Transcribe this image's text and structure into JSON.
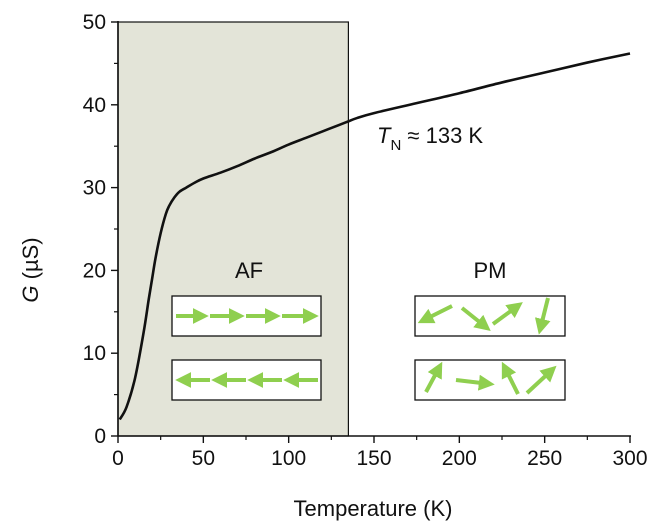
{
  "chart_data": {
    "type": "line",
    "xlabel": "Temperature (K)",
    "ylabel_var": "G",
    "ylabel_unit": " (µS)",
    "xlim": [
      0,
      300
    ],
    "ylim": [
      0,
      50
    ],
    "x_ticks": [
      0,
      50,
      100,
      150,
      200,
      250,
      300
    ],
    "y_ticks": [
      0,
      10,
      20,
      30,
      40,
      50
    ],
    "x_tick_labels": [
      "0",
      "50",
      "100",
      "150",
      "200",
      "250",
      "300"
    ],
    "y_tick_labels": [
      "0",
      "10",
      "20",
      "30",
      "40",
      "50"
    ],
    "grid": false,
    "shaded_region": {
      "x_range": [
        0,
        135
      ],
      "color": "#e3e4d8"
    },
    "series": [
      {
        "color": "#111111",
        "points": [
          [
            1,
            2.0
          ],
          [
            5,
            3.5
          ],
          [
            10,
            7.0
          ],
          [
            15,
            12.5
          ],
          [
            18,
            16.5
          ],
          [
            20,
            19.0
          ],
          [
            22,
            21.5
          ],
          [
            25,
            24.5
          ],
          [
            28,
            26.8
          ],
          [
            30,
            27.8
          ],
          [
            33,
            28.8
          ],
          [
            36,
            29.5
          ],
          [
            40,
            30.0
          ],
          [
            45,
            30.6
          ],
          [
            50,
            31.1
          ],
          [
            60,
            31.8
          ],
          [
            70,
            32.6
          ],
          [
            80,
            33.5
          ],
          [
            90,
            34.3
          ],
          [
            100,
            35.2
          ],
          [
            110,
            36.0
          ],
          [
            120,
            36.8
          ],
          [
            130,
            37.6
          ],
          [
            135,
            38.0
          ],
          [
            140,
            38.4
          ],
          [
            150,
            39.0
          ],
          [
            175,
            40.2
          ],
          [
            200,
            41.4
          ],
          [
            225,
            42.7
          ],
          [
            250,
            43.9
          ],
          [
            275,
            45.1
          ],
          [
            300,
            46.2
          ]
        ]
      }
    ],
    "annotations": {
      "tn_symbol": "T",
      "tn_subscript": "N",
      "tn_value": " ≈ 133 K",
      "af_label": "AF",
      "pm_label": "PM"
    },
    "arrow_color": "#8fcf4f"
  }
}
